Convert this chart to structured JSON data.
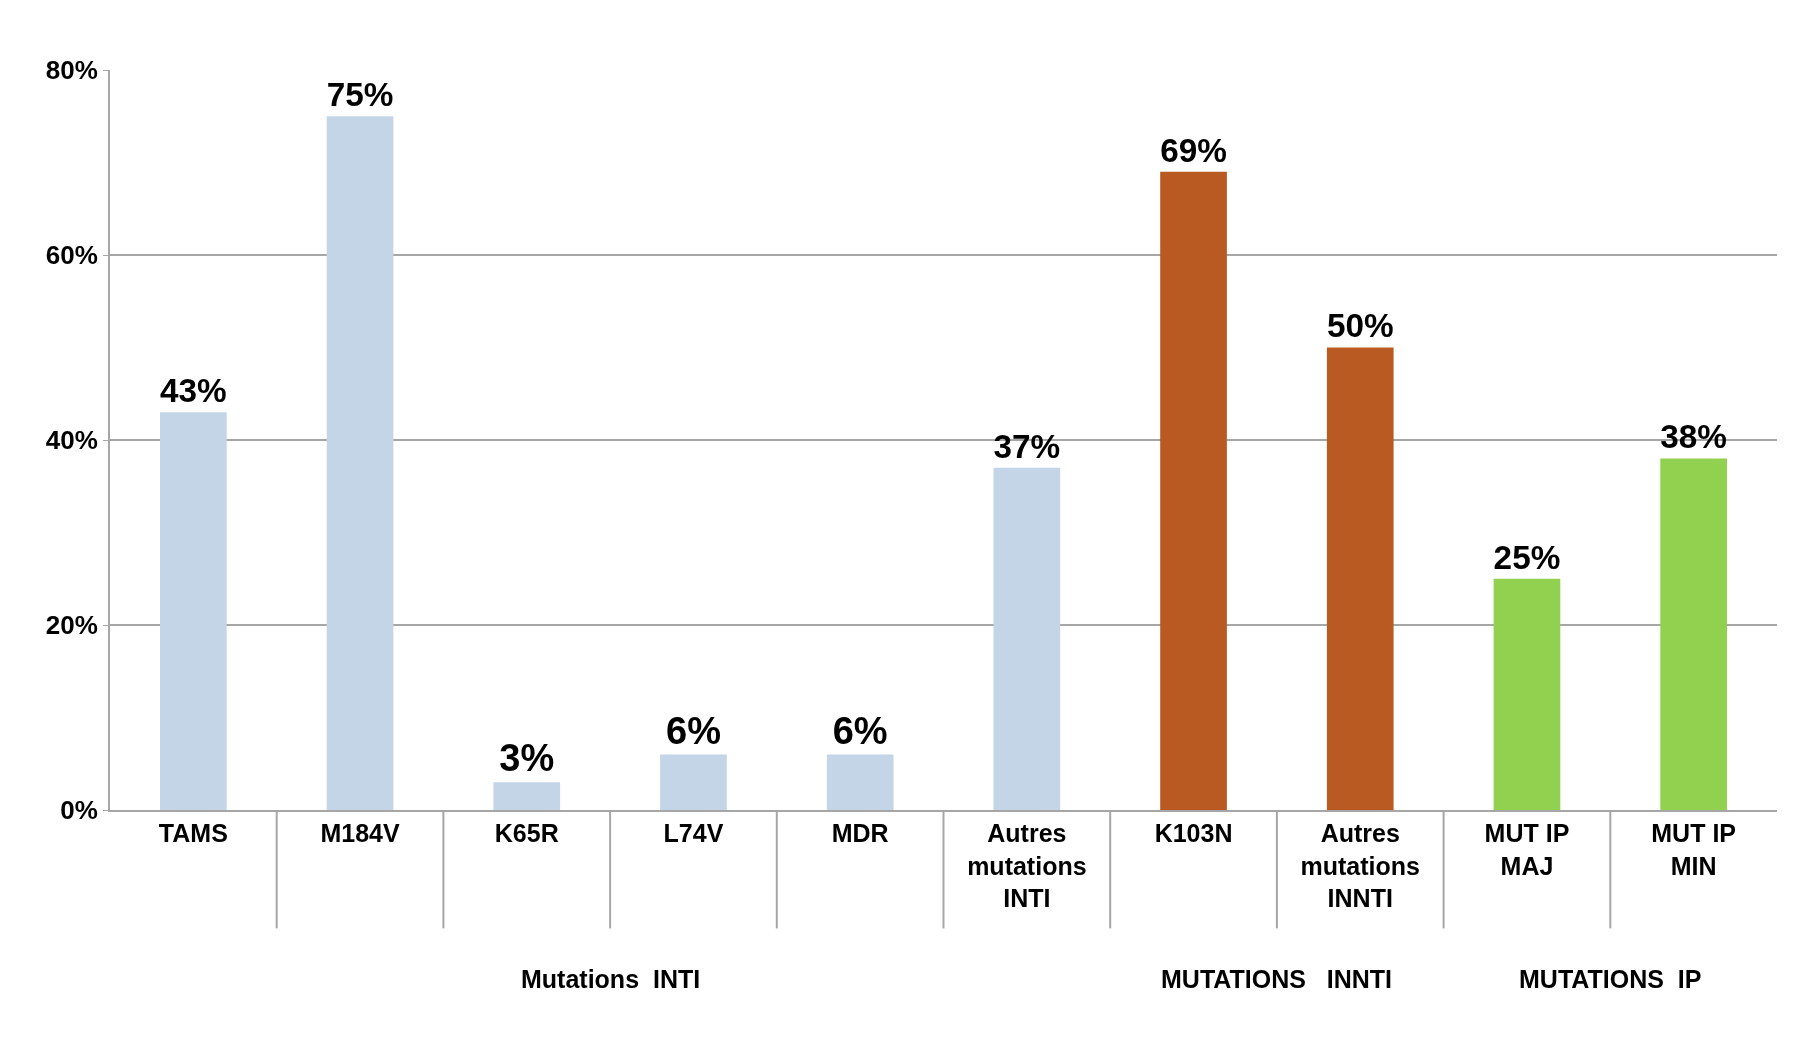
{
  "chart_data": {
    "type": "bar",
    "categories": [
      "TAMS",
      "M184V",
      "K65R",
      "L74V",
      "MDR",
      "Autres\nmutations\nINTI",
      "K103N",
      "Autres\nmutations\nINNTI",
      "MUT IP\nMAJ",
      "MUT IP\nMIN"
    ],
    "values": [
      43,
      75,
      3,
      6,
      6,
      37,
      69,
      50,
      25,
      38
    ],
    "colors": [
      "#c3d5e6",
      "#c3d5e6",
      "#c3d5e6",
      "#c3d5e6",
      "#c3d5e6",
      "#c3d5e6",
      "#b85a22",
      "#b85a22",
      "#92d050",
      "#92d050"
    ],
    "value_labels": [
      "43%",
      "75%",
      "3%",
      "6%",
      "6%",
      "37%",
      "69%",
      "50%",
      "25%",
      "38%"
    ],
    "ylim": [
      0,
      80
    ],
    "yticks": [
      {
        "value": 0,
        "label": "0%"
      },
      {
        "value": 20,
        "label": "20%"
      },
      {
        "value": 40,
        "label": "40%"
      },
      {
        "value": 60,
        "label": "60%"
      },
      {
        "value": 80,
        "label": "80%"
      }
    ],
    "grid": "y",
    "annotations": [
      "Mutations  INTI",
      "MUTATIONS   INNTI",
      "MUTATIONS  IP"
    ]
  }
}
